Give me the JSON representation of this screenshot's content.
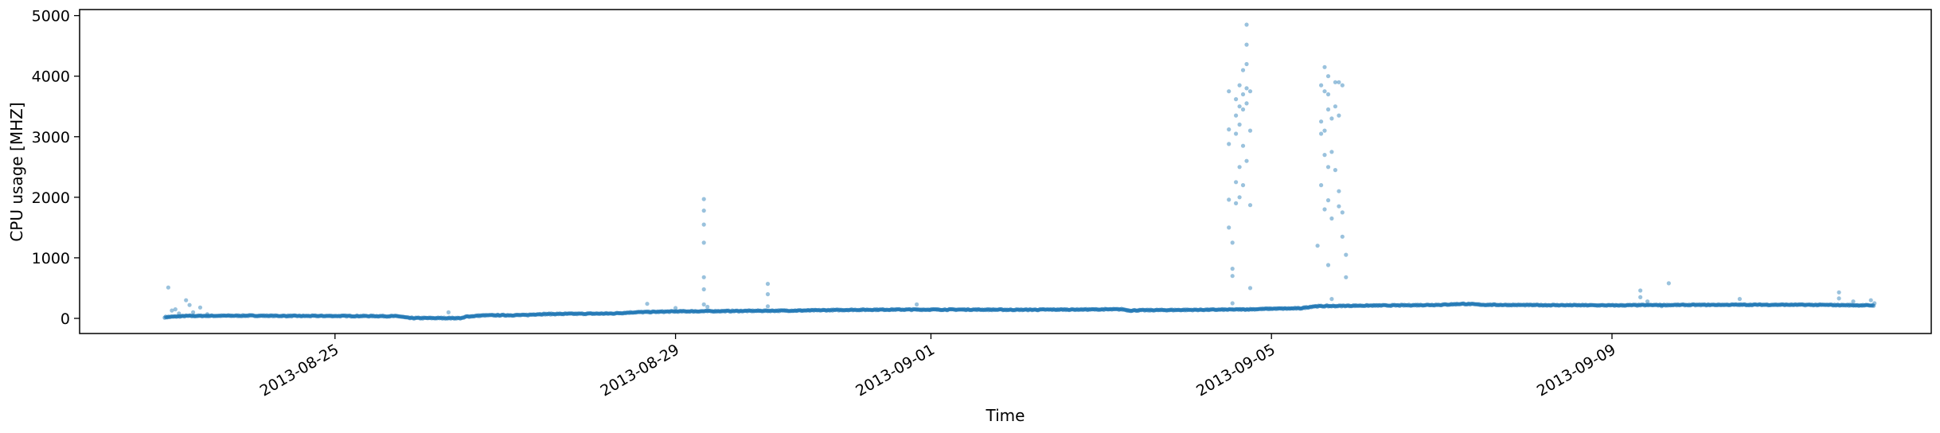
{
  "chart_data": {
    "type": "scatter",
    "title": "",
    "xlabel": "Time",
    "ylabel": "CPU usage [MHZ]",
    "xlim": [
      "2013-08-22T00:00:00",
      "2013-09-12T18:00:00"
    ],
    "ylim": [
      -250,
      5100
    ],
    "x_ticks": [
      "2013-08-25",
      "2013-08-29",
      "2013-09-01",
      "2013-09-05",
      "2013-09-09"
    ],
    "y_ticks": [
      0,
      1000,
      2000,
      3000,
      4000,
      5000
    ],
    "grid": false,
    "legend": "none",
    "point_color": "#1f77b4",
    "series": [
      {
        "baseline": [
          [
            "2013-08-23T00:00:00",
            20
          ],
          [
            "2013-08-23T06:00:00",
            40
          ],
          [
            "2013-08-23T12:00:00",
            42
          ],
          [
            "2013-08-24T00:00:00",
            45
          ],
          [
            "2013-08-24T12:00:00",
            40
          ],
          [
            "2013-08-25T00:00:00",
            40
          ],
          [
            "2013-08-25T12:00:00",
            38
          ],
          [
            "2013-08-25T18:00:00",
            35
          ],
          [
            "2013-08-25T21:00:00",
            5
          ],
          [
            "2013-08-26T12:00:00",
            5
          ],
          [
            "2013-08-26T13:00:00",
            30
          ],
          [
            "2013-08-26T18:00:00",
            50
          ],
          [
            "2013-08-27T06:00:00",
            55
          ],
          [
            "2013-08-27T09:00:00",
            70
          ],
          [
            "2013-08-27T18:00:00",
            75
          ],
          [
            "2013-08-28T06:00:00",
            80
          ],
          [
            "2013-08-28T12:00:00",
            100
          ],
          [
            "2013-08-29T00:00:00",
            115
          ],
          [
            "2013-08-29T12:00:00",
            120
          ],
          [
            "2013-08-30T00:00:00",
            125
          ],
          [
            "2013-08-30T12:00:00",
            130
          ],
          [
            "2013-08-31T00:00:00",
            140
          ],
          [
            "2013-08-31T12:00:00",
            145
          ],
          [
            "2013-09-01T00:00:00",
            145
          ],
          [
            "2013-09-01T12:00:00",
            145
          ],
          [
            "2013-09-02T00:00:00",
            142
          ],
          [
            "2013-09-02T12:00:00",
            145
          ],
          [
            "2013-09-03T00:00:00",
            148
          ],
          [
            "2013-09-03T06:00:00",
            150
          ],
          [
            "2013-09-03T08:00:00",
            130
          ],
          [
            "2013-09-03T12:00:00",
            135
          ],
          [
            "2013-09-04T00:00:00",
            140
          ],
          [
            "2013-09-04T12:00:00",
            145
          ],
          [
            "2013-09-04T18:00:00",
            150
          ],
          [
            "2013-09-05T00:00:00",
            160
          ],
          [
            "2013-09-05T08:00:00",
            165
          ],
          [
            "2013-09-05T12:00:00",
            200
          ],
          [
            "2013-09-06T00:00:00",
            210
          ],
          [
            "2013-09-06T12:00:00",
            215
          ],
          [
            "2013-09-07T00:00:00",
            225
          ],
          [
            "2013-09-07T06:00:00",
            240
          ],
          [
            "2013-09-07T12:00:00",
            225
          ],
          [
            "2013-09-08T00:00:00",
            220
          ],
          [
            "2013-09-08T12:00:00",
            218
          ],
          [
            "2013-09-09T00:00:00",
            215
          ],
          [
            "2013-09-09T12:00:00",
            220
          ],
          [
            "2013-09-10T00:00:00",
            222
          ],
          [
            "2013-09-10T12:00:00",
            225
          ],
          [
            "2013-09-11T00:00:00",
            225
          ],
          [
            "2013-09-11T12:00:00",
            222
          ],
          [
            "2013-09-12T00:00:00",
            215
          ],
          [
            "2013-09-12T02:00:00",
            215
          ]
        ],
        "outliers": [
          [
            "2013-08-23T01:00:00",
            510
          ],
          [
            "2013-08-23T02:00:00",
            130
          ],
          [
            "2013-08-23T03:00:00",
            150
          ],
          [
            "2013-08-23T04:00:00",
            80
          ],
          [
            "2013-08-23T06:00:00",
            300
          ],
          [
            "2013-08-23T07:00:00",
            220
          ],
          [
            "2013-08-23T08:00:00",
            100
          ],
          [
            "2013-08-23T10:00:00",
            180
          ],
          [
            "2013-08-23T12:00:00",
            70
          ],
          [
            "2013-08-26T08:00:00",
            100
          ],
          [
            "2013-08-28T16:00:00",
            240
          ],
          [
            "2013-08-29T00:00:00",
            170
          ],
          [
            "2013-08-29T08:00:00",
            1970
          ],
          [
            "2013-08-29T08:00:00",
            1780
          ],
          [
            "2013-08-29T08:00:00",
            1550
          ],
          [
            "2013-08-29T08:00:00",
            1250
          ],
          [
            "2013-08-29T08:00:00",
            680
          ],
          [
            "2013-08-29T08:00:00",
            480
          ],
          [
            "2013-08-29T08:00:00",
            230
          ],
          [
            "2013-08-29T09:00:00",
            190
          ],
          [
            "2013-08-30T02:00:00",
            570
          ],
          [
            "2013-08-30T02:00:00",
            400
          ],
          [
            "2013-08-30T02:00:00",
            200
          ],
          [
            "2013-08-31T20:00:00",
            230
          ],
          [
            "2013-09-04T12:00:00",
            3750
          ],
          [
            "2013-09-04T12:00:00",
            3120
          ],
          [
            "2013-09-04T12:00:00",
            2880
          ],
          [
            "2013-09-04T12:00:00",
            1960
          ],
          [
            "2013-09-04T12:00:00",
            1500
          ],
          [
            "2013-09-04T13:00:00",
            1250
          ],
          [
            "2013-09-04T13:00:00",
            820
          ],
          [
            "2013-09-04T13:00:00",
            700
          ],
          [
            "2013-09-04T13:00:00",
            250
          ],
          [
            "2013-09-04T14:00:00",
            3620
          ],
          [
            "2013-09-04T14:00:00",
            3350
          ],
          [
            "2013-09-04T14:00:00",
            3050
          ],
          [
            "2013-09-04T14:00:00",
            2250
          ],
          [
            "2013-09-04T14:00:00",
            1900
          ],
          [
            "2013-09-04T15:00:00",
            3850
          ],
          [
            "2013-09-04T15:00:00",
            3500
          ],
          [
            "2013-09-04T15:00:00",
            3200
          ],
          [
            "2013-09-04T15:00:00",
            2500
          ],
          [
            "2013-09-04T15:00:00",
            2000
          ],
          [
            "2013-09-04T16:00:00",
            4100
          ],
          [
            "2013-09-04T16:00:00",
            3700
          ],
          [
            "2013-09-04T16:00:00",
            3450
          ],
          [
            "2013-09-04T16:00:00",
            2850
          ],
          [
            "2013-09-04T16:00:00",
            2200
          ],
          [
            "2013-09-04T17:00:00",
            4850
          ],
          [
            "2013-09-04T17:00:00",
            4520
          ],
          [
            "2013-09-04T17:00:00",
            4200
          ],
          [
            "2013-09-04T17:00:00",
            3800
          ],
          [
            "2013-09-04T17:00:00",
            3550
          ],
          [
            "2013-09-04T17:00:00",
            2600
          ],
          [
            "2013-09-04T18:00:00",
            3750
          ],
          [
            "2013-09-04T18:00:00",
            3100
          ],
          [
            "2013-09-04T18:00:00",
            1870
          ],
          [
            "2013-09-04T18:00:00",
            500
          ],
          [
            "2013-09-05T13:00:00",
            1200
          ],
          [
            "2013-09-05T14:00:00",
            3850
          ],
          [
            "2013-09-05T14:00:00",
            3250
          ],
          [
            "2013-09-05T14:00:00",
            3050
          ],
          [
            "2013-09-05T14:00:00",
            2200
          ],
          [
            "2013-09-05T15:00:00",
            4150
          ],
          [
            "2013-09-05T15:00:00",
            3750
          ],
          [
            "2013-09-05T15:00:00",
            3100
          ],
          [
            "2013-09-05T15:00:00",
            2700
          ],
          [
            "2013-09-05T15:00:00",
            1800
          ],
          [
            "2013-09-05T16:00:00",
            4000
          ],
          [
            "2013-09-05T16:00:00",
            3700
          ],
          [
            "2013-09-05T16:00:00",
            3450
          ],
          [
            "2013-09-05T16:00:00",
            2500
          ],
          [
            "2013-09-05T16:00:00",
            1950
          ],
          [
            "2013-09-05T16:00:00",
            880
          ],
          [
            "2013-09-05T17:00:00",
            3300
          ],
          [
            "2013-09-05T17:00:00",
            2750
          ],
          [
            "2013-09-05T17:00:00",
            1650
          ],
          [
            "2013-09-05T17:00:00",
            320
          ],
          [
            "2013-09-05T18:00:00",
            3900
          ],
          [
            "2013-09-05T18:00:00",
            3500
          ],
          [
            "2013-09-05T18:00:00",
            2450
          ],
          [
            "2013-09-05T19:00:00",
            3900
          ],
          [
            "2013-09-05T19:00:00",
            3350
          ],
          [
            "2013-09-05T19:00:00",
            2100
          ],
          [
            "2013-09-05T19:00:00",
            1850
          ],
          [
            "2013-09-05T20:00:00",
            3850
          ],
          [
            "2013-09-05T20:00:00",
            1750
          ],
          [
            "2013-09-05T20:00:00",
            1350
          ],
          [
            "2013-09-05T21:00:00",
            1050
          ],
          [
            "2013-09-05T21:00:00",
            680
          ],
          [
            "2013-09-09T08:00:00",
            460
          ],
          [
            "2013-09-09T08:00:00",
            350
          ],
          [
            "2013-09-09T10:00:00",
            280
          ],
          [
            "2013-09-09T14:00:00",
            200
          ],
          [
            "2013-09-09T16:00:00",
            580
          ],
          [
            "2013-09-10T12:00:00",
            320
          ],
          [
            "2013-09-11T16:00:00",
            430
          ],
          [
            "2013-09-11T16:00:00",
            330
          ],
          [
            "2013-09-11T20:00:00",
            280
          ],
          [
            "2013-09-12T01:00:00",
            300
          ],
          [
            "2013-09-12T02:00:00",
            250
          ]
        ]
      }
    ]
  }
}
